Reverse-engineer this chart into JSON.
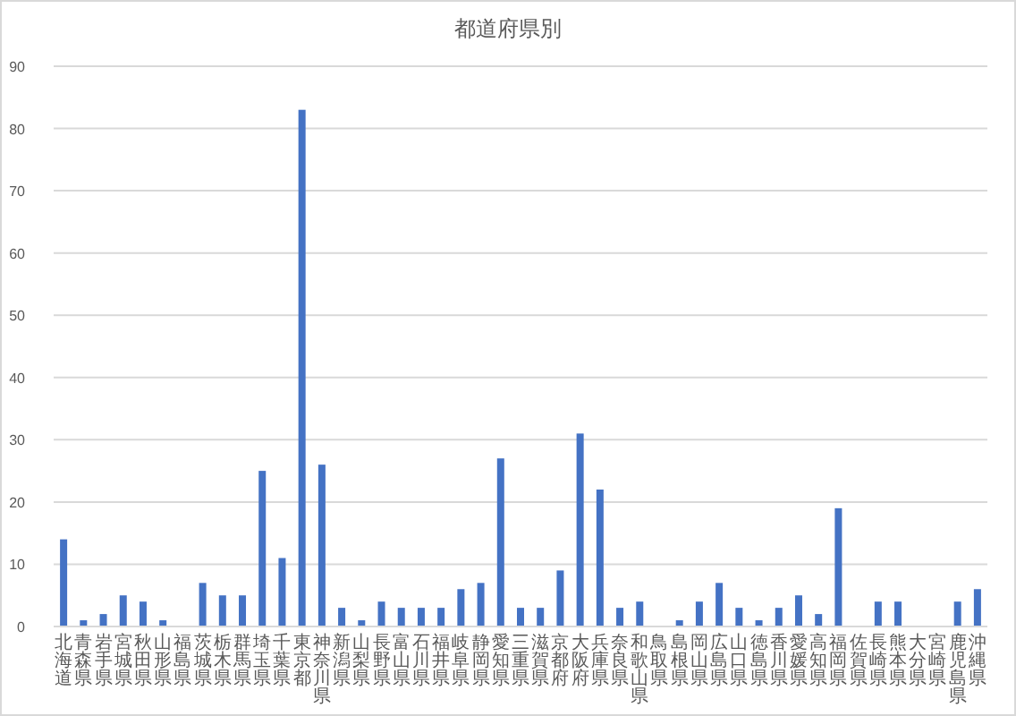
{
  "chart_data": {
    "type": "bar",
    "title": "都道府県別",
    "categories": [
      "北海道",
      "青森県",
      "岩手県",
      "宮城県",
      "秋田県",
      "山形県",
      "福島県",
      "茨城県",
      "栃木県",
      "群馬県",
      "埼玉県",
      "千葉県",
      "東京都",
      "神奈川県",
      "新潟県",
      "山梨県",
      "長野県",
      "富山県",
      "石川県",
      "福井県",
      "岐阜県",
      "静岡県",
      "愛知県",
      "三重県",
      "滋賀県",
      "京都府",
      "大阪府",
      "兵庫県",
      "奈良県",
      "和歌山県",
      "鳥取県",
      "島根県",
      "岡山県",
      "広島県",
      "山口県",
      "徳島県",
      "香川県",
      "愛媛県",
      "高知県",
      "福岡県",
      "佐賀県",
      "長崎県",
      "熊本県",
      "大分県",
      "宮崎県",
      "鹿児島県",
      "沖縄県"
    ],
    "values": [
      14,
      1,
      2,
      5,
      4,
      1,
      0,
      7,
      5,
      5,
      25,
      11,
      83,
      26,
      3,
      1,
      4,
      3,
      3,
      3,
      6,
      7,
      27,
      3,
      3,
      9,
      31,
      22,
      3,
      4,
      0,
      1,
      4,
      7,
      3,
      1,
      3,
      5,
      2,
      19,
      0,
      4,
      4,
      0,
      0,
      4,
      6
    ],
    "color": "#4472c4",
    "ylim": [
      0,
      90
    ],
    "yticks": [
      0,
      10,
      20,
      30,
      40,
      50,
      60,
      70,
      80,
      90
    ],
    "grid": "y"
  }
}
